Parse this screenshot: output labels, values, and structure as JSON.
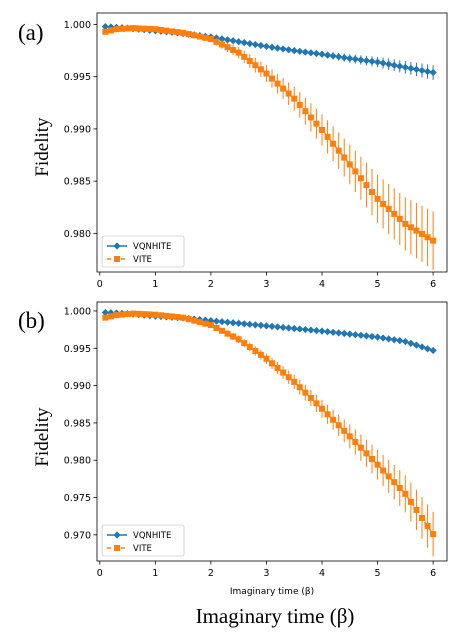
{
  "figure": {
    "bottom_xlabel": "Imaginary time (β)"
  },
  "chart_data": [
    {
      "type": "line",
      "panel_label": "(a)",
      "ylabel": "Fidelity",
      "xlabel": "",
      "xlim": [
        -0.05,
        6.25
      ],
      "ylim": [
        0.9763,
        1.0011
      ],
      "xticks": [
        0,
        1,
        2,
        3,
        4,
        5,
        6
      ],
      "yticks": [
        0.98,
        0.985,
        0.99,
        0.995,
        1.0
      ],
      "ytick_labels": [
        "0.980",
        "0.985",
        "0.990",
        "0.995",
        "1.000"
      ],
      "legend_position": "lower-left",
      "x": {
        "start": 0.1,
        "step": 0.1,
        "count": 60
      },
      "series": [
        {
          "name": "VQNHITE",
          "color": "#1f77b4",
          "marker": "diamond",
          "style": "solid",
          "anchors": [
            [
              0.1,
              0.9998
            ],
            [
              0.5,
              0.99965
            ],
            [
              1.0,
              0.9994
            ],
            [
              1.5,
              0.99915
            ],
            [
              2.0,
              0.9988
            ],
            [
              2.5,
              0.99835
            ],
            [
              3.0,
              0.9979
            ],
            [
              3.5,
              0.9975
            ],
            [
              4.0,
              0.99715
            ],
            [
              4.5,
              0.99675
            ],
            [
              5.0,
              0.9964
            ],
            [
              5.5,
              0.9959
            ],
            [
              6.0,
              0.9954
            ]
          ],
          "error_anchors": [
            [
              0.1,
              0.0
            ],
            [
              2.0,
              0.0001
            ],
            [
              4.0,
              0.0003
            ],
            [
              6.0,
              0.0007
            ]
          ]
        },
        {
          "name": "VITE",
          "color": "#ff7f0e",
          "marker": "square",
          "style": "dashed",
          "anchors": [
            [
              0.1,
              0.9993
            ],
            [
              0.3,
              0.99955
            ],
            [
              0.6,
              0.99965
            ],
            [
              1.0,
              0.99955
            ],
            [
              1.5,
              0.9992
            ],
            [
              2.0,
              0.9986
            ],
            [
              2.5,
              0.9973
            ],
            [
              3.0,
              0.9953
            ],
            [
              3.5,
              0.9929
            ],
            [
              4.0,
              0.9899
            ],
            [
              4.5,
              0.9866
            ],
            [
              5.0,
              0.9833
            ],
            [
              5.5,
              0.9809
            ],
            [
              6.0,
              0.9793
            ]
          ],
          "error_anchors": [
            [
              0.1,
              0.0
            ],
            [
              2.0,
              0.0003
            ],
            [
              3.0,
              0.0008
            ],
            [
              4.0,
              0.0015
            ],
            [
              5.0,
              0.0023
            ],
            [
              6.0,
              0.0028
            ]
          ]
        }
      ]
    },
    {
      "type": "line",
      "panel_label": "(b)",
      "ylabel": "Fidelity",
      "xlabel": "Imaginary time (β)",
      "xlim": [
        -0.05,
        6.25
      ],
      "ylim": [
        0.9665,
        1.0012
      ],
      "xticks": [
        0,
        1,
        2,
        3,
        4,
        5,
        6
      ],
      "yticks": [
        0.97,
        0.975,
        0.98,
        0.985,
        0.99,
        0.995,
        1.0
      ],
      "ytick_labels": [
        "0.970",
        "0.975",
        "0.980",
        "0.985",
        "0.990",
        "0.995",
        "1.000"
      ],
      "legend_position": "lower-left",
      "x": {
        "start": 0.1,
        "step": 0.1,
        "count": 60
      },
      "series": [
        {
          "name": "VQNHITE",
          "color": "#1f77b4",
          "marker": "diamond",
          "style": "solid",
          "anchors": [
            [
              0.1,
              0.9998
            ],
            [
              0.5,
              0.99965
            ],
            [
              1.0,
              0.9993
            ],
            [
              1.5,
              0.99905
            ],
            [
              2.0,
              0.9987
            ],
            [
              2.5,
              0.99835
            ],
            [
              3.0,
              0.998
            ],
            [
              3.5,
              0.99765
            ],
            [
              4.0,
              0.9973
            ],
            [
              4.5,
              0.9969
            ],
            [
              5.0,
              0.9965
            ],
            [
              5.5,
              0.9959
            ],
            [
              6.0,
              0.9947
            ]
          ],
          "error_anchors": [
            [
              0.1,
              0.0
            ],
            [
              3.0,
              0.0001
            ],
            [
              6.0,
              0.0003
            ]
          ]
        },
        {
          "name": "VITE",
          "color": "#ff7f0e",
          "marker": "square",
          "style": "dashed",
          "anchors": [
            [
              0.1,
              0.9991
            ],
            [
              0.3,
              0.99945
            ],
            [
              0.6,
              0.99965
            ],
            [
              1.0,
              0.9995
            ],
            [
              1.5,
              0.9991
            ],
            [
              2.0,
              0.9981
            ],
            [
              2.5,
              0.9962
            ],
            [
              3.0,
              0.9936
            ],
            [
              3.5,
              0.9905
            ],
            [
              4.0,
              0.9869
            ],
            [
              4.5,
              0.9832
            ],
            [
              5.0,
              0.9794
            ],
            [
              5.5,
              0.9755
            ],
            [
              6.0,
              0.9701
            ]
          ],
          "error_anchors": [
            [
              0.1,
              0.0
            ],
            [
              2.0,
              0.0003
            ],
            [
              3.0,
              0.0007
            ],
            [
              4.0,
              0.0012
            ],
            [
              5.0,
              0.002
            ],
            [
              6.0,
              0.003
            ]
          ]
        }
      ]
    }
  ]
}
